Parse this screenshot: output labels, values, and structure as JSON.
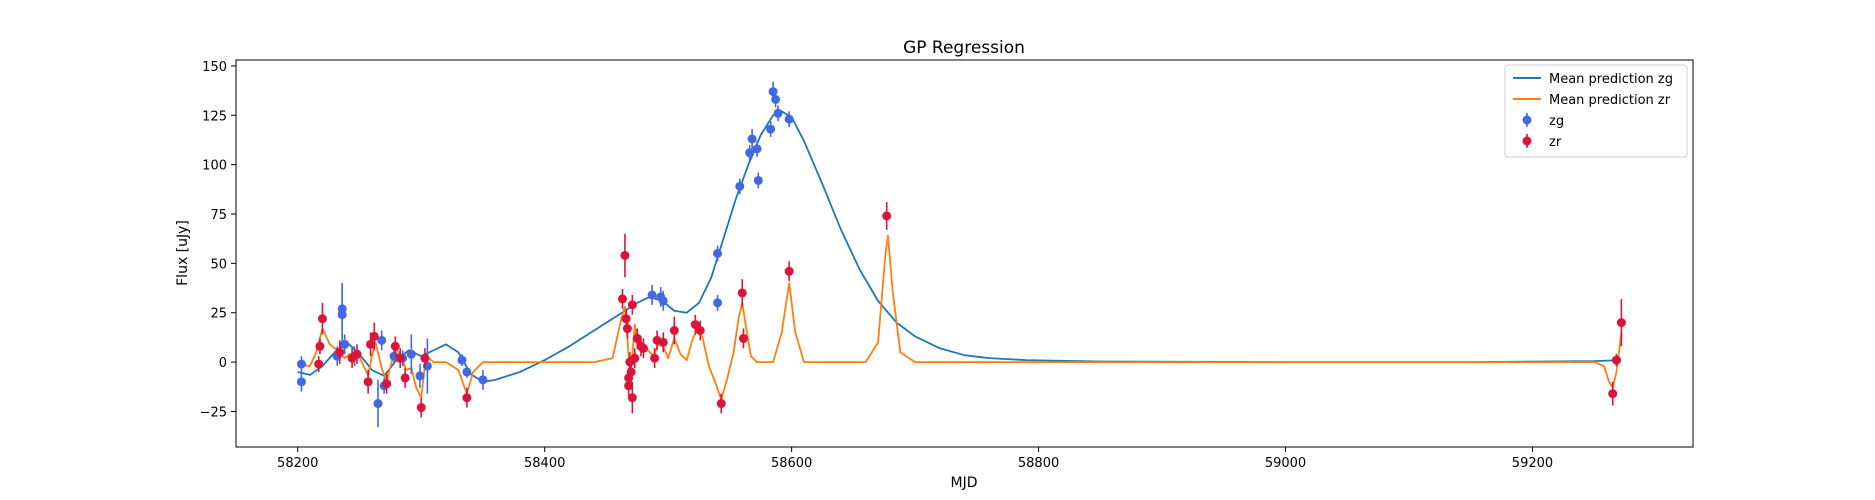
{
  "chart_data": {
    "type": "scatter",
    "title": "GP Regression",
    "xlabel": "MJD",
    "ylabel": "Flux [uJy]",
    "xlim": [
      58150,
      59330
    ],
    "ylim": [
      -43,
      153
    ],
    "xticks": [
      58200,
      58400,
      58600,
      58800,
      59000,
      59200
    ],
    "yticks": [
      -25,
      0,
      25,
      50,
      75,
      100,
      125,
      150
    ],
    "grid": false,
    "legend_position": "top-right",
    "legend": [
      {
        "label": "Mean prediction zg",
        "kind": "line",
        "color": "#1f77b4"
      },
      {
        "label": "Mean prediction zr",
        "kind": "line",
        "color": "#ff7f0e"
      },
      {
        "label": "zg",
        "kind": "errorbar",
        "color": "#4169e1"
      },
      {
        "label": "zr",
        "kind": "errorbar",
        "color": "#dc143c"
      }
    ],
    "series": [
      {
        "name": "zg",
        "kind": "errorbar",
        "color": "#4169e1",
        "points": [
          {
            "x": 58203,
            "y": -1,
            "err": 4
          },
          {
            "x": 58203,
            "y": -10,
            "err": 5
          },
          {
            "x": 58232,
            "y": 3,
            "err": 5
          },
          {
            "x": 58236,
            "y": 27,
            "err": 10
          },
          {
            "x": 58236,
            "y": 24,
            "err": 16
          },
          {
            "x": 58238,
            "y": 9,
            "err": 5
          },
          {
            "x": 58246,
            "y": 3,
            "err": 5
          },
          {
            "x": 58265,
            "y": -21,
            "err": 12
          },
          {
            "x": 58268,
            "y": 11,
            "err": 5
          },
          {
            "x": 58270,
            "y": -12,
            "err": 4
          },
          {
            "x": 58278,
            "y": 3,
            "err": 4
          },
          {
            "x": 58285,
            "y": 2,
            "err": 4
          },
          {
            "x": 58292,
            "y": 4,
            "err": 10
          },
          {
            "x": 58299,
            "y": -7,
            "err": 6
          },
          {
            "x": 58305,
            "y": -2,
            "err": 14
          },
          {
            "x": 58333,
            "y": 1,
            "err": 3
          },
          {
            "x": 58337,
            "y": -5,
            "err": 3
          },
          {
            "x": 58350,
            "y": -9,
            "err": 5
          },
          {
            "x": 58487,
            "y": 34,
            "err": 5
          },
          {
            "x": 58494,
            "y": 33,
            "err": 5
          },
          {
            "x": 58496,
            "y": 31,
            "err": 5
          },
          {
            "x": 58540,
            "y": 30,
            "err": 4
          },
          {
            "x": 58540,
            "y": 55,
            "err": 4
          },
          {
            "x": 58558,
            "y": 89,
            "err": 4
          },
          {
            "x": 58566,
            "y": 106,
            "err": 4
          },
          {
            "x": 58568,
            "y": 113,
            "err": 5
          },
          {
            "x": 58572,
            "y": 108,
            "err": 4
          },
          {
            "x": 58573,
            "y": 92,
            "err": 4
          },
          {
            "x": 58583,
            "y": 118,
            "err": 4
          },
          {
            "x": 58585,
            "y": 137,
            "err": 5
          },
          {
            "x": 58587,
            "y": 133,
            "err": 4
          },
          {
            "x": 58589,
            "y": 126,
            "err": 4
          },
          {
            "x": 58598,
            "y": 123,
            "err": 4
          },
          {
            "x": 59268,
            "y": 1,
            "err": 3
          }
        ]
      },
      {
        "name": "zr",
        "kind": "errorbar",
        "color": "#dc143c",
        "points": [
          {
            "x": 58217,
            "y": -1,
            "err": 4
          },
          {
            "x": 58218,
            "y": 8,
            "err": 4
          },
          {
            "x": 58220,
            "y": 22,
            "err": 8
          },
          {
            "x": 58234,
            "y": 5,
            "err": 6
          },
          {
            "x": 58244,
            "y": 2,
            "err": 5
          },
          {
            "x": 58248,
            "y": 4,
            "err": 5
          },
          {
            "x": 58257,
            "y": -10,
            "err": 6
          },
          {
            "x": 58259,
            "y": 9,
            "err": 6
          },
          {
            "x": 58262,
            "y": 13,
            "err": 7
          },
          {
            "x": 58272,
            "y": -11,
            "err": 5
          },
          {
            "x": 58279,
            "y": 8,
            "err": 5
          },
          {
            "x": 58283,
            "y": 2,
            "err": 5
          },
          {
            "x": 58287,
            "y": -8,
            "err": 5
          },
          {
            "x": 58300,
            "y": -23,
            "err": 5
          },
          {
            "x": 58303,
            "y": 2,
            "err": 5
          },
          {
            "x": 58337,
            "y": -18,
            "err": 5
          },
          {
            "x": 58463,
            "y": 32,
            "err": 5
          },
          {
            "x": 58465,
            "y": 54,
            "err": 11
          },
          {
            "x": 58466,
            "y": 22,
            "err": 5
          },
          {
            "x": 58467,
            "y": 17,
            "err": 5
          },
          {
            "x": 58468,
            "y": -12,
            "err": 5
          },
          {
            "x": 58468,
            "y": -8,
            "err": 5
          },
          {
            "x": 58469,
            "y": 0,
            "err": 5
          },
          {
            "x": 58470,
            "y": -5,
            "err": 5
          },
          {
            "x": 58471,
            "y": -18,
            "err": 8
          },
          {
            "x": 58471,
            "y": 29,
            "err": 5
          },
          {
            "x": 58473,
            "y": 2,
            "err": 5
          },
          {
            "x": 58475,
            "y": 12,
            "err": 5
          },
          {
            "x": 58478,
            "y": 8,
            "err": 5
          },
          {
            "x": 58480,
            "y": 7,
            "err": 5
          },
          {
            "x": 58489,
            "y": 2,
            "err": 5
          },
          {
            "x": 58491,
            "y": 11,
            "err": 5
          },
          {
            "x": 58496,
            "y": 10,
            "err": 5
          },
          {
            "x": 58505,
            "y": 16,
            "err": 7
          },
          {
            "x": 58522,
            "y": 19,
            "err": 5
          },
          {
            "x": 58526,
            "y": 16,
            "err": 5
          },
          {
            "x": 58543,
            "y": -21,
            "err": 5
          },
          {
            "x": 58560,
            "y": 35,
            "err": 7
          },
          {
            "x": 58561,
            "y": 12,
            "err": 5
          },
          {
            "x": 58598,
            "y": 46,
            "err": 5
          },
          {
            "x": 58677,
            "y": 74,
            "err": 7
          },
          {
            "x": 59265,
            "y": -16,
            "err": 6
          },
          {
            "x": 59268,
            "y": 1,
            "err": 3
          },
          {
            "x": 59272,
            "y": 20,
            "err": 12
          }
        ]
      },
      {
        "name": "Mean prediction zg",
        "kind": "line",
        "color": "#1f77b4",
        "points": [
          [
            58200,
            -5
          ],
          [
            58210,
            -6.5
          ],
          [
            58220,
            -2
          ],
          [
            58230,
            5
          ],
          [
            58240,
            10
          ],
          [
            58250,
            4
          ],
          [
            58260,
            -4
          ],
          [
            58270,
            -7
          ],
          [
            58280,
            1
          ],
          [
            58290,
            6
          ],
          [
            58300,
            3
          ],
          [
            58310,
            6
          ],
          [
            58320,
            9
          ],
          [
            58330,
            5
          ],
          [
            58340,
            -6
          ],
          [
            58350,
            -10
          ],
          [
            58360,
            -9
          ],
          [
            58380,
            -5
          ],
          [
            58400,
            1
          ],
          [
            58420,
            8
          ],
          [
            58440,
            16
          ],
          [
            58460,
            24
          ],
          [
            58475,
            30
          ],
          [
            58485,
            33
          ],
          [
            58495,
            31
          ],
          [
            58505,
            26
          ],
          [
            58515,
            25
          ],
          [
            58525,
            30
          ],
          [
            58535,
            43
          ],
          [
            58545,
            63
          ],
          [
            58555,
            83
          ],
          [
            58565,
            100
          ],
          [
            58575,
            115
          ],
          [
            58585,
            125
          ],
          [
            58592,
            127
          ],
          [
            58600,
            124
          ],
          [
            58610,
            112
          ],
          [
            58625,
            90
          ],
          [
            58640,
            67
          ],
          [
            58655,
            47
          ],
          [
            58670,
            31
          ],
          [
            58685,
            20
          ],
          [
            58700,
            13
          ],
          [
            58720,
            7
          ],
          [
            58740,
            3.5
          ],
          [
            58760,
            2
          ],
          [
            58790,
            1
          ],
          [
            58850,
            0.3
          ],
          [
            59000,
            0
          ],
          [
            59150,
            0
          ],
          [
            59250,
            0.5
          ],
          [
            59270,
            1
          ]
        ]
      },
      {
        "name": "Mean prediction zr",
        "kind": "line",
        "color": "#ff7f0e",
        "points": [
          [
            58200,
            -1
          ],
          [
            58210,
            -2
          ],
          [
            58215,
            5
          ],
          [
            58220,
            17
          ],
          [
            58226,
            9
          ],
          [
            58232,
            6
          ],
          [
            58238,
            2
          ],
          [
            58242,
            4
          ],
          [
            58248,
            5
          ],
          [
            58252,
            0
          ],
          [
            58257,
            -7
          ],
          [
            58260,
            3
          ],
          [
            58263,
            10
          ],
          [
            58268,
            -3
          ],
          [
            58272,
            -10
          ],
          [
            58276,
            0
          ],
          [
            58280,
            7
          ],
          [
            58284,
            2
          ],
          [
            58288,
            -4
          ],
          [
            58292,
            -3
          ],
          [
            58296,
            -13
          ],
          [
            58300,
            -18
          ],
          [
            58303,
            -2
          ],
          [
            58306,
            2
          ],
          [
            58310,
            0
          ],
          [
            58320,
            0
          ],
          [
            58330,
            -4
          ],
          [
            58337,
            -16
          ],
          [
            58342,
            -5
          ],
          [
            58350,
            0
          ],
          [
            58380,
            0
          ],
          [
            58440,
            0
          ],
          [
            58455,
            2
          ],
          [
            58462,
            22
          ],
          [
            58465,
            28
          ],
          [
            58467,
            12
          ],
          [
            58469,
            -6
          ],
          [
            58471,
            3
          ],
          [
            58473,
            19
          ],
          [
            58475,
            9
          ],
          [
            58478,
            5
          ],
          [
            58482,
            7
          ],
          [
            58488,
            3
          ],
          [
            58492,
            9
          ],
          [
            58496,
            8
          ],
          [
            58500,
            2
          ],
          [
            58505,
            12
          ],
          [
            58510,
            4
          ],
          [
            58515,
            1
          ],
          [
            58520,
            12
          ],
          [
            58524,
            17
          ],
          [
            58528,
            12
          ],
          [
            58533,
            -2
          ],
          [
            58538,
            -10
          ],
          [
            58543,
            -19
          ],
          [
            58548,
            -8
          ],
          [
            58553,
            5
          ],
          [
            58557,
            22
          ],
          [
            58560,
            30
          ],
          [
            58563,
            18
          ],
          [
            58567,
            3
          ],
          [
            58572,
            0
          ],
          [
            58585,
            0
          ],
          [
            58592,
            15
          ],
          [
            58598,
            40
          ],
          [
            58603,
            15
          ],
          [
            58610,
            0
          ],
          [
            58660,
            0
          ],
          [
            58670,
            10
          ],
          [
            58676,
            55
          ],
          [
            58678,
            64
          ],
          [
            58682,
            35
          ],
          [
            58688,
            5
          ],
          [
            58700,
            0
          ],
          [
            59000,
            0
          ],
          [
            59250,
            0
          ],
          [
            59258,
            -2
          ],
          [
            59262,
            -10
          ],
          [
            59265,
            -13
          ],
          [
            59268,
            -5
          ],
          [
            59270,
            5
          ],
          [
            59272,
            15
          ]
        ]
      }
    ]
  }
}
